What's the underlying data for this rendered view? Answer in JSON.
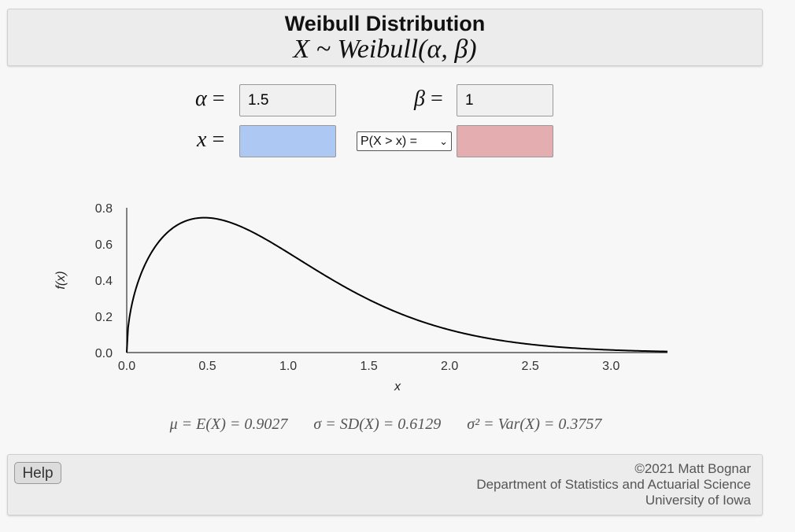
{
  "header": {
    "title": "Weibull Distribution",
    "subtitle": "X ~ Weibull(α, β)"
  },
  "params": {
    "alpha_symbol": "α",
    "beta_symbol": "β",
    "x_symbol": "x",
    "equals": "=",
    "alpha_value": "1.5",
    "beta_value": "1",
    "x_value": "",
    "probability_type": "P(X > x) =",
    "probability_value": ""
  },
  "chart_data": {
    "type": "line",
    "xlabel": "x",
    "ylabel": "f(x)",
    "xlim": [
      0,
      3.35
    ],
    "ylim": [
      0,
      0.8
    ],
    "x_ticks": [
      "0.0",
      "0.5",
      "1.0",
      "1.5",
      "2.0",
      "2.5",
      "3.0"
    ],
    "y_ticks": [
      "0.0",
      "0.2",
      "0.4",
      "0.6",
      "0.8"
    ],
    "series": [
      {
        "x": [
          0,
          0.05,
          0.1,
          0.2,
          0.3,
          0.4,
          0.5,
          0.6,
          0.8,
          1.0,
          1.2,
          1.5,
          1.8,
          2.0,
          2.5,
          3.0,
          3.35
        ],
        "y": [
          0,
          0.33,
          0.46,
          0.61,
          0.69,
          0.73,
          0.74,
          0.73,
          0.65,
          0.55,
          0.43,
          0.29,
          0.17,
          0.12,
          0.05,
          0.01,
          0.005
        ]
      }
    ]
  },
  "stats": {
    "mean": "μ = E(X) = 0.9027",
    "sd": "σ = SD(X) = 0.6129",
    "var": "σ² = Var(X) = 0.3757"
  },
  "footer": {
    "help_label": "Help",
    "copyright": "©2021 Matt Bognar",
    "department": "Department of Statistics and Actuarial Science",
    "university": "University of Iowa"
  }
}
